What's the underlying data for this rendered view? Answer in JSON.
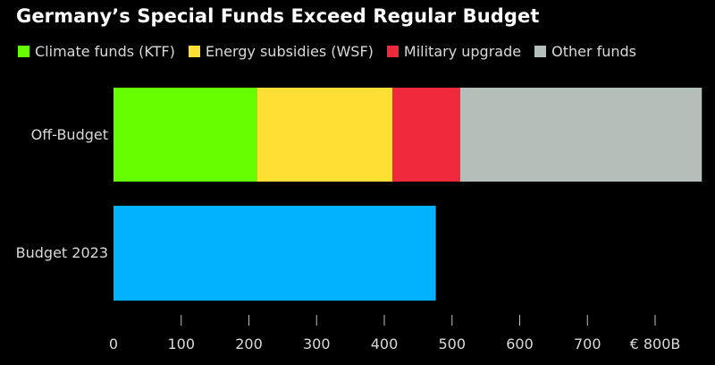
{
  "chart_data": {
    "type": "bar",
    "orientation": "horizontal",
    "stacked": true,
    "title": "Germany’s Special Funds Exceed Regular Budget",
    "categories": [
      "Off-Budget",
      "Budget 2023"
    ],
    "series": [
      {
        "name": "Climate funds (KTF)",
        "color": "#66ff00",
        "values": [
          212,
          0
        ]
      },
      {
        "name": "Energy subsidies (WSF)",
        "color": "#ffdf33",
        "values": [
          200,
          0
        ]
      },
      {
        "name": "Military upgrade",
        "color": "#f0293c",
        "values": [
          100,
          0
        ]
      },
      {
        "name": "Other funds",
        "color": "#b3bfb8",
        "values": [
          357,
          0
        ]
      },
      {
        "name": "",
        "color": "#00b2ff",
        "values": [
          0,
          476
        ]
      }
    ],
    "xlim": [
      0,
      870
    ],
    "xticks": [
      0,
      100,
      200,
      300,
      400,
      500,
      600,
      700,
      800
    ],
    "xtick_labels": [
      "0",
      "100",
      "200",
      "300",
      "400",
      "500",
      "600",
      "700",
      "€ 800B"
    ],
    "grid": false,
    "legend_position": "top-left"
  }
}
